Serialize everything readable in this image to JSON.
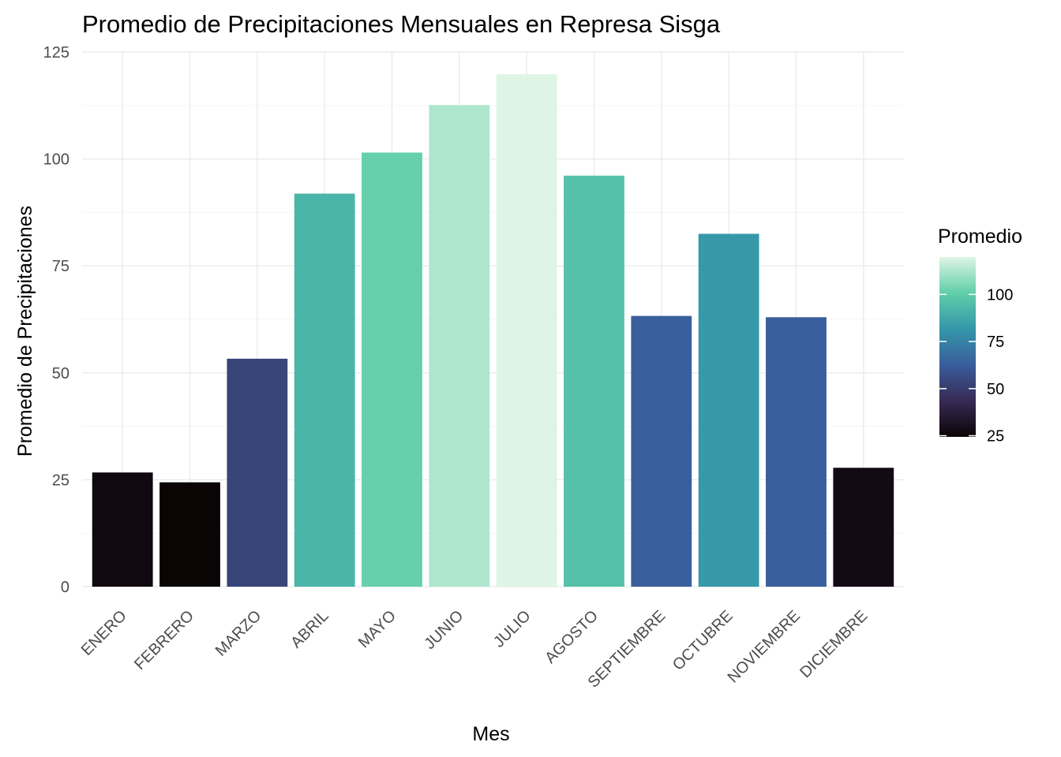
{
  "chart_data": {
    "type": "bar",
    "title": "Promedio de Precipitaciones Mensuales en Represa Sisga",
    "xlabel": "Mes",
    "ylabel": "Promedio de Precipitaciones",
    "categories": [
      "ENERO",
      "FEBRERO",
      "MARZO",
      "ABRIL",
      "MAYO",
      "JUNIO",
      "JULIO",
      "AGOSTO",
      "SEPTIEMBRE",
      "OCTUBRE",
      "NOVIEMBRE",
      "DICIEMBRE"
    ],
    "values": [
      26.7,
      24.4,
      53.3,
      91.9,
      101.5,
      112.6,
      119.8,
      96.1,
      63.3,
      82.5,
      63.0,
      27.8
    ],
    "ylim": [
      0,
      125
    ],
    "yticks": [
      0,
      25,
      50,
      75,
      100,
      125
    ],
    "grid": true,
    "legend": {
      "title": "Promedio",
      "placement": "right",
      "ticks": [
        25,
        50,
        75,
        100
      ],
      "range": [
        24.4,
        119.8
      ],
      "palette": [
        "#0b0405",
        "#382a54",
        "#395d9c",
        "#3497a9",
        "#60cea9",
        "#def5e5"
      ]
    }
  }
}
